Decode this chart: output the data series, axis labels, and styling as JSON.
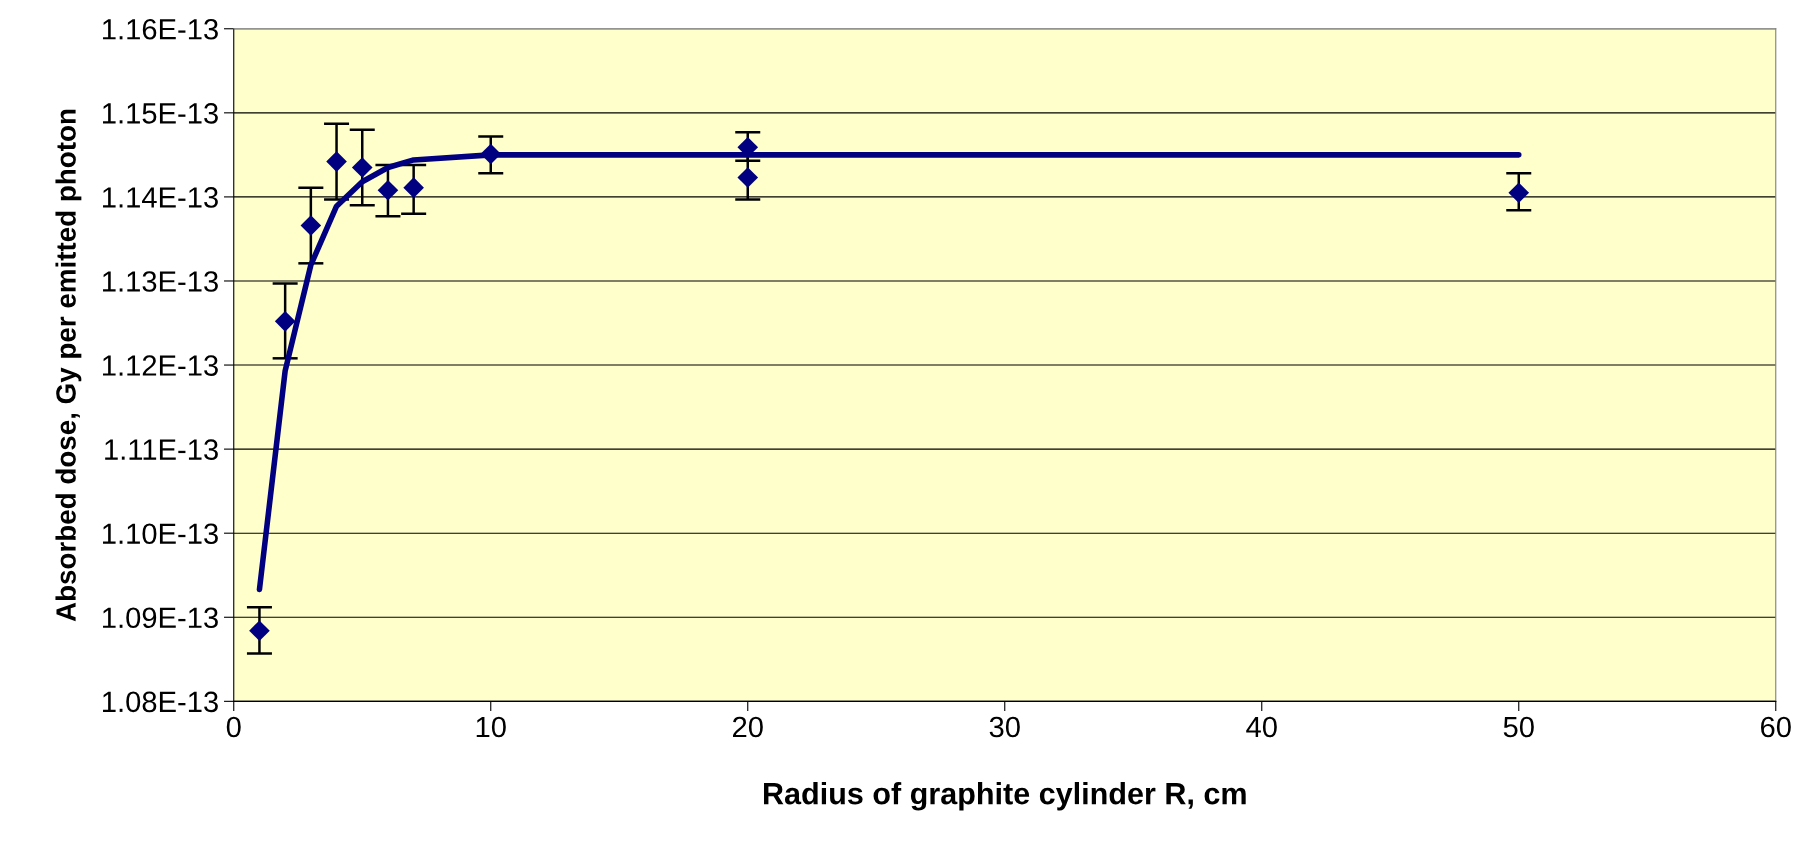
{
  "chart_data": {
    "type": "scatter",
    "xlabel": "Radius of graphite cylinder R, cm",
    "ylabel": "Absorbed dose, Gy per emitted photon",
    "xlim": [
      0,
      60
    ],
    "xticks": [
      0,
      10,
      20,
      30,
      40,
      50,
      60
    ],
    "ylim": [
      1.08e-13,
      1.16e-13
    ],
    "yticks": [
      {
        "value": 1.08e-13,
        "label": "1.08E-13"
      },
      {
        "value": 1.09e-13,
        "label": "1.09E-13"
      },
      {
        "value": 1.1e-13,
        "label": "1.10E-13"
      },
      {
        "value": 1.11e-13,
        "label": "1.11E-13"
      },
      {
        "value": 1.12e-13,
        "label": "1.12E-13"
      },
      {
        "value": 1.13e-13,
        "label": "1.13E-13"
      },
      {
        "value": 1.14e-13,
        "label": "1.14E-13"
      },
      {
        "value": 1.15e-13,
        "label": "1.15E-13"
      },
      {
        "value": 1.16e-13,
        "label": "1.16E-13"
      }
    ],
    "grid": "y",
    "series": [
      {
        "color": "#000080",
        "marker": "diamond",
        "x": [
          1,
          2,
          3,
          4,
          5,
          6,
          7,
          10,
          20,
          20,
          50
        ],
        "values": [
          1.0884e-13,
          1.1252e-13,
          1.1366e-13,
          1.1442e-13,
          1.1435e-13,
          1.1408e-13,
          1.1411e-13,
          1.1451e-13,
          1.1459e-13,
          1.1423e-13,
          1.1405e-13
        ],
        "errors": [
          [
            1.0857e-13,
            1.0912e-13
          ],
          [
            1.1208e-13,
            1.1297e-13
          ],
          [
            1.1321e-13,
            1.1411e-13
          ],
          [
            1.1397e-13,
            1.1487e-13
          ],
          [
            1.139e-13,
            1.148e-13
          ],
          [
            1.1377e-13,
            1.1438e-13
          ],
          [
            1.138e-13,
            1.1438e-13
          ],
          [
            1.1428e-13,
            1.1472e-13
          ],
          [
            1.1443e-13,
            1.1477e-13
          ],
          [
            1.1397e-13,
            1.145e-13
          ],
          [
            1.1384e-13,
            1.1428e-13
          ]
        ]
      },
      {
        "type": "line",
        "color": "#000080",
        "marker": "none",
        "line_style": "solid",
        "x": [
          1,
          2,
          3,
          4,
          5,
          6,
          7,
          10,
          50
        ],
        "values": [
          1.0933e-13,
          1.1193e-13,
          1.1319e-13,
          1.1389e-13,
          1.1418e-13,
          1.1435e-13,
          1.1444e-13,
          1.145e-13,
          1.145e-13
        ]
      }
    ]
  }
}
